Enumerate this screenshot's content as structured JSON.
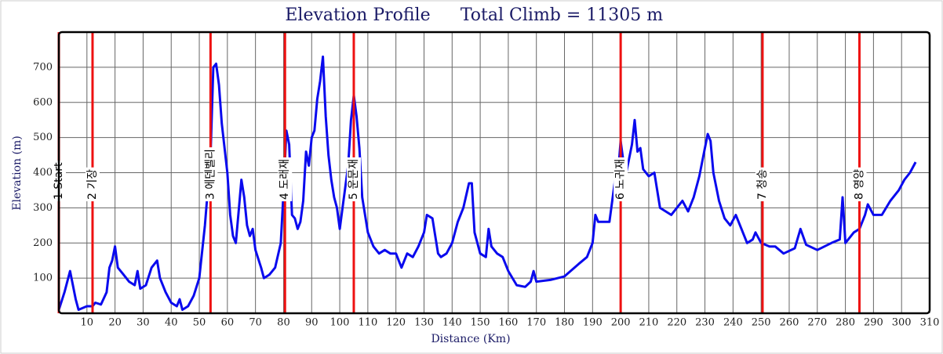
{
  "chart_data": {
    "type": "line",
    "title": "Elevation Profile",
    "subtitle": "Total Climb = 11305 m",
    "x_label": "Distance (Km)",
    "y_label": "Elevation (m)",
    "color": "#0a0aee",
    "marker_color": "#ee1111",
    "grid": true,
    "xlim": [
      0,
      310
    ],
    "xticks": [
      10,
      20,
      30,
      40,
      50,
      60,
      70,
      80,
      90,
      100,
      110,
      120,
      130,
      140,
      150,
      160,
      170,
      180,
      190,
      200,
      210,
      220,
      230,
      240,
      250,
      260,
      270,
      280,
      290,
      300,
      310
    ],
    "ylim": [
      0,
      800
    ],
    "yticks": [
      100,
      200,
      300,
      400,
      500,
      600,
      700
    ],
    "markers": [
      {
        "x": 0,
        "label": "1 Start"
      },
      {
        "x": 12,
        "label": "2 기장"
      },
      {
        "x": 54,
        "label": "3 에덴벨리"
      },
      {
        "x": 80.5,
        "label": "4 도래재"
      },
      {
        "x": 105,
        "label": "5 운문재"
      },
      {
        "x": 200,
        "label": "6 노귀재"
      },
      {
        "x": 250.5,
        "label": "7 청송"
      },
      {
        "x": 285,
        "label": "8 영양"
      }
    ],
    "x": [
      0,
      2,
      4,
      6,
      7,
      10,
      12,
      13,
      15,
      17,
      18,
      19,
      20,
      21,
      23,
      25,
      27,
      28,
      29,
      31,
      33,
      35,
      36,
      38,
      40,
      42,
      43,
      44,
      46,
      48,
      50,
      52,
      54,
      55,
      56,
      57,
      58,
      60,
      61,
      62,
      63,
      64,
      65,
      66,
      67,
      68,
      69,
      70,
      72,
      73,
      75,
      77,
      79,
      80,
      81,
      82,
      83,
      84,
      85,
      86,
      87,
      88,
      89,
      90,
      91,
      92,
      93,
      94,
      95,
      96,
      97,
      98,
      99,
      100,
      101,
      103,
      104,
      105,
      106,
      107,
      108,
      110,
      112,
      114,
      116,
      118,
      120,
      122,
      124,
      126,
      128,
      130,
      131,
      133,
      135,
      136,
      138,
      140,
      142,
      144,
      146,
      147,
      148,
      150,
      152,
      153,
      154,
      156,
      158,
      160,
      163,
      166,
      168,
      169,
      170,
      175,
      180,
      185,
      188,
      190,
      191,
      192,
      196,
      198,
      199,
      200,
      201,
      202,
      204,
      205,
      206,
      207,
      208,
      210,
      212,
      214,
      218,
      220,
      222,
      224,
      226,
      228,
      230,
      231,
      232,
      233,
      235,
      237,
      239,
      241,
      243,
      245,
      247,
      248,
      250,
      253,
      255,
      258,
      262,
      264,
      266,
      270,
      275,
      278,
      279,
      280,
      283,
      285,
      287,
      288,
      290,
      293,
      296,
      299,
      301,
      303,
      305
    ],
    "values": [
      10,
      60,
      120,
      40,
      10,
      20,
      20,
      30,
      25,
      60,
      130,
      150,
      190,
      130,
      110,
      90,
      80,
      120,
      70,
      80,
      130,
      150,
      100,
      60,
      30,
      20,
      40,
      10,
      20,
      50,
      100,
      250,
      450,
      700,
      710,
      650,
      540,
      400,
      280,
      220,
      200,
      290,
      380,
      330,
      250,
      220,
      240,
      180,
      130,
      100,
      110,
      130,
      200,
      350,
      520,
      480,
      280,
      270,
      240,
      260,
      320,
      460,
      420,
      500,
      520,
      610,
      660,
      730,
      560,
      450,
      380,
      330,
      300,
      240,
      300,
      420,
      550,
      620,
      560,
      470,
      330,
      230,
      190,
      170,
      180,
      170,
      170,
      130,
      170,
      160,
      190,
      230,
      280,
      270,
      170,
      160,
      170,
      200,
      260,
      300,
      370,
      370,
      230,
      170,
      160,
      240,
      190,
      170,
      160,
      120,
      80,
      75,
      90,
      120,
      90,
      95,
      105,
      140,
      160,
      200,
      280,
      260,
      260,
      380,
      390,
      490,
      430,
      400,
      480,
      550,
      460,
      470,
      410,
      390,
      400,
      300,
      280,
      300,
      320,
      290,
      330,
      390,
      470,
      510,
      490,
      400,
      320,
      270,
      250,
      280,
      240,
      200,
      210,
      230,
      200,
      190,
      190,
      170,
      185,
      240,
      195,
      180,
      200,
      210,
      330,
      200,
      230,
      240,
      280,
      310,
      280,
      280,
      320,
      350,
      380,
      400,
      430
    ]
  }
}
